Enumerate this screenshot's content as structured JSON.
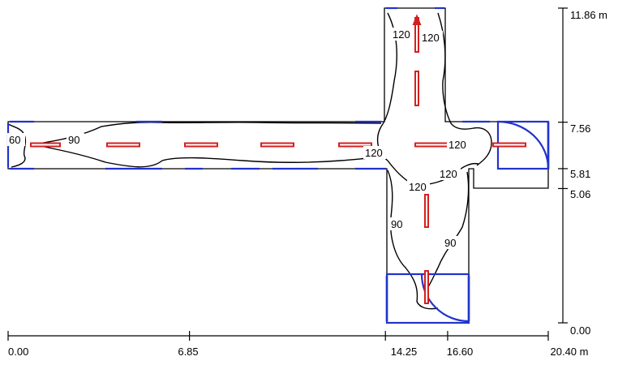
{
  "colors": {
    "walls": "#000000",
    "isolines": "#000000",
    "luminaires": "#d42020",
    "openings": "#2233cc",
    "axes": "#000000"
  },
  "x_axis": {
    "unit": "m",
    "ticks": [
      {
        "value": 0.0,
        "label": "0.00"
      },
      {
        "value": 6.85,
        "label": "6.85"
      },
      {
        "value": 14.25,
        "label": "14.25"
      },
      {
        "value": 16.6,
        "label": "16.60"
      },
      {
        "value": 20.4,
        "label": "20.40 m"
      }
    ]
  },
  "y_axis": {
    "unit": "m",
    "ticks": [
      {
        "value": 0.0,
        "label": "0.00"
      },
      {
        "value": 5.06,
        "label": "5.06"
      },
      {
        "value": 5.81,
        "label": "5.81"
      },
      {
        "value": 7.56,
        "label": "7.56"
      },
      {
        "value": 11.86,
        "label": "11.86 m"
      }
    ]
  },
  "isoline_labels": [
    {
      "text": "60"
    },
    {
      "text": "90"
    },
    {
      "text": "120"
    },
    {
      "text": "120"
    },
    {
      "text": "120"
    },
    {
      "text": "120"
    },
    {
      "text": "120"
    },
    {
      "text": "120"
    },
    {
      "text": "90"
    },
    {
      "text": "90"
    }
  ]
}
